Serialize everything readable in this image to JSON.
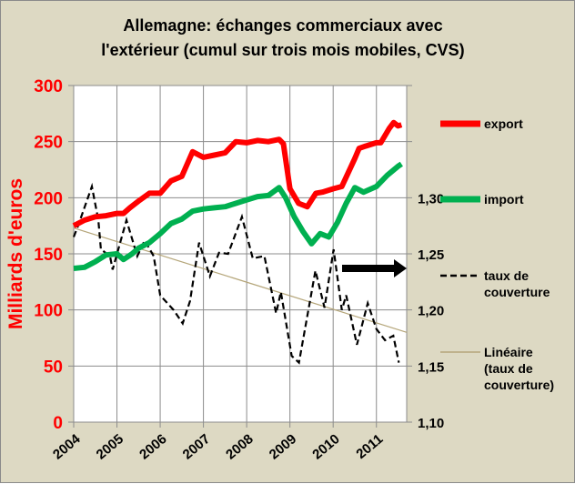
{
  "chart_data": {
    "type": "line",
    "title_line1": "Allemagne: échanges commerciaux avec",
    "title_line2": "l'extérieur (cumul sur trois mois mobiles, CVS)",
    "ylabel": "Milliards d'euros",
    "ylim": [
      0,
      300
    ],
    "yticks": [
      "0",
      "50",
      "100",
      "150",
      "200",
      "250",
      "300"
    ],
    "y2lim": [
      1.1,
      1.4
    ],
    "y2ticks": [
      "1,10",
      "1,15",
      "1,20",
      "1,25",
      "1,30"
    ],
    "xlim": [
      2004,
      2011.7
    ],
    "xticks": [
      "2004",
      "2005",
      "2006",
      "2007",
      "2008",
      "2009",
      "2010",
      "2011"
    ],
    "grid": true,
    "legend_position": "right",
    "colors": {
      "export": "#ff0000",
      "import": "#00b050",
      "taux": "#000000",
      "trend": "#b5a67a",
      "left_axis": "#ff0000"
    },
    "series": [
      {
        "name": "export",
        "axis": "left",
        "x": [
          2004.0,
          2004.25,
          2004.5,
          2004.75,
          2005.0,
          2005.15,
          2005.3,
          2005.5,
          2005.75,
          2006.0,
          2006.25,
          2006.5,
          2006.75,
          2007.0,
          2007.25,
          2007.5,
          2007.75,
          2008.0,
          2008.25,
          2008.5,
          2008.75,
          2008.85,
          2009.0,
          2009.2,
          2009.4,
          2009.6,
          2009.75,
          2010.0,
          2010.2,
          2010.5,
          2010.6,
          2010.75,
          2011.0,
          2011.1,
          2011.3,
          2011.4,
          2011.5,
          2011.58
        ],
        "y": [
          175,
          180,
          183,
          184,
          186,
          186,
          191,
          197,
          204,
          204,
          215,
          219,
          241,
          236,
          238,
          240,
          250,
          249,
          251,
          250,
          252,
          248,
          208,
          195,
          192,
          204,
          205,
          208,
          210,
          235,
          244,
          246,
          249,
          249,
          262,
          267,
          264,
          265
        ]
      },
      {
        "name": "import",
        "axis": "left",
        "x": [
          2004.0,
          2004.25,
          2004.5,
          2004.75,
          2005.0,
          2005.15,
          2005.35,
          2005.5,
          2005.75,
          2006.0,
          2006.25,
          2006.5,
          2006.75,
          2007.0,
          2007.25,
          2007.5,
          2007.75,
          2008.0,
          2008.25,
          2008.5,
          2008.75,
          2008.9,
          2009.1,
          2009.3,
          2009.5,
          2009.7,
          2009.9,
          2010.1,
          2010.3,
          2010.5,
          2010.7,
          2011.0,
          2011.25,
          2011.5,
          2011.58
        ],
        "y": [
          137,
          138,
          143,
          149,
          150,
          145,
          150,
          155,
          160,
          168,
          177,
          181,
          188,
          190,
          191,
          192,
          195,
          198,
          201,
          202,
          209,
          200,
          183,
          170,
          159,
          168,
          165,
          178,
          195,
          209,
          205,
          210,
          220,
          228,
          230
        ]
      },
      {
        "name": "taux de couverture",
        "axis": "right",
        "x": [
          2004.0,
          2004.1,
          2004.42,
          2004.57,
          2004.63,
          2004.84,
          2004.9,
          2005.22,
          2005.47,
          2005.64,
          2005.85,
          2006.0,
          2006.31,
          2006.52,
          2006.69,
          2006.9,
          2007.15,
          2007.36,
          2007.57,
          2007.89,
          2008.14,
          2008.41,
          2008.68,
          2008.79,
          2009.04,
          2009.21,
          2009.59,
          2009.8,
          2010.01,
          2010.2,
          2010.3,
          2010.55,
          2010.8,
          2011.0,
          2011.2,
          2011.39,
          2011.52
        ],
        "y": [
          1.265,
          1.275,
          1.31,
          1.28,
          1.254,
          1.248,
          1.236,
          1.28,
          1.248,
          1.262,
          1.248,
          1.213,
          1.2,
          1.188,
          1.208,
          1.26,
          1.23,
          1.251,
          1.25,
          1.283,
          1.246,
          1.248,
          1.197,
          1.216,
          1.159,
          1.153,
          1.235,
          1.202,
          1.254,
          1.2,
          1.213,
          1.169,
          1.206,
          1.183,
          1.173,
          1.177,
          1.153
        ]
      },
      {
        "name": "Linéaire (taux de couverture)",
        "axis": "right",
        "x": [
          2004.0,
          2011.7
        ],
        "y": [
          1.273,
          1.18
        ]
      }
    ],
    "legend": [
      {
        "label": "export"
      },
      {
        "label": "import"
      },
      {
        "label": "taux de couverture",
        "lines": [
          "taux de",
          "couverture"
        ]
      },
      {
        "label": "Linéaire (taux de couverture)",
        "lines": [
          "Linéaire",
          "(taux de",
          "couverture)"
        ]
      }
    ]
  }
}
